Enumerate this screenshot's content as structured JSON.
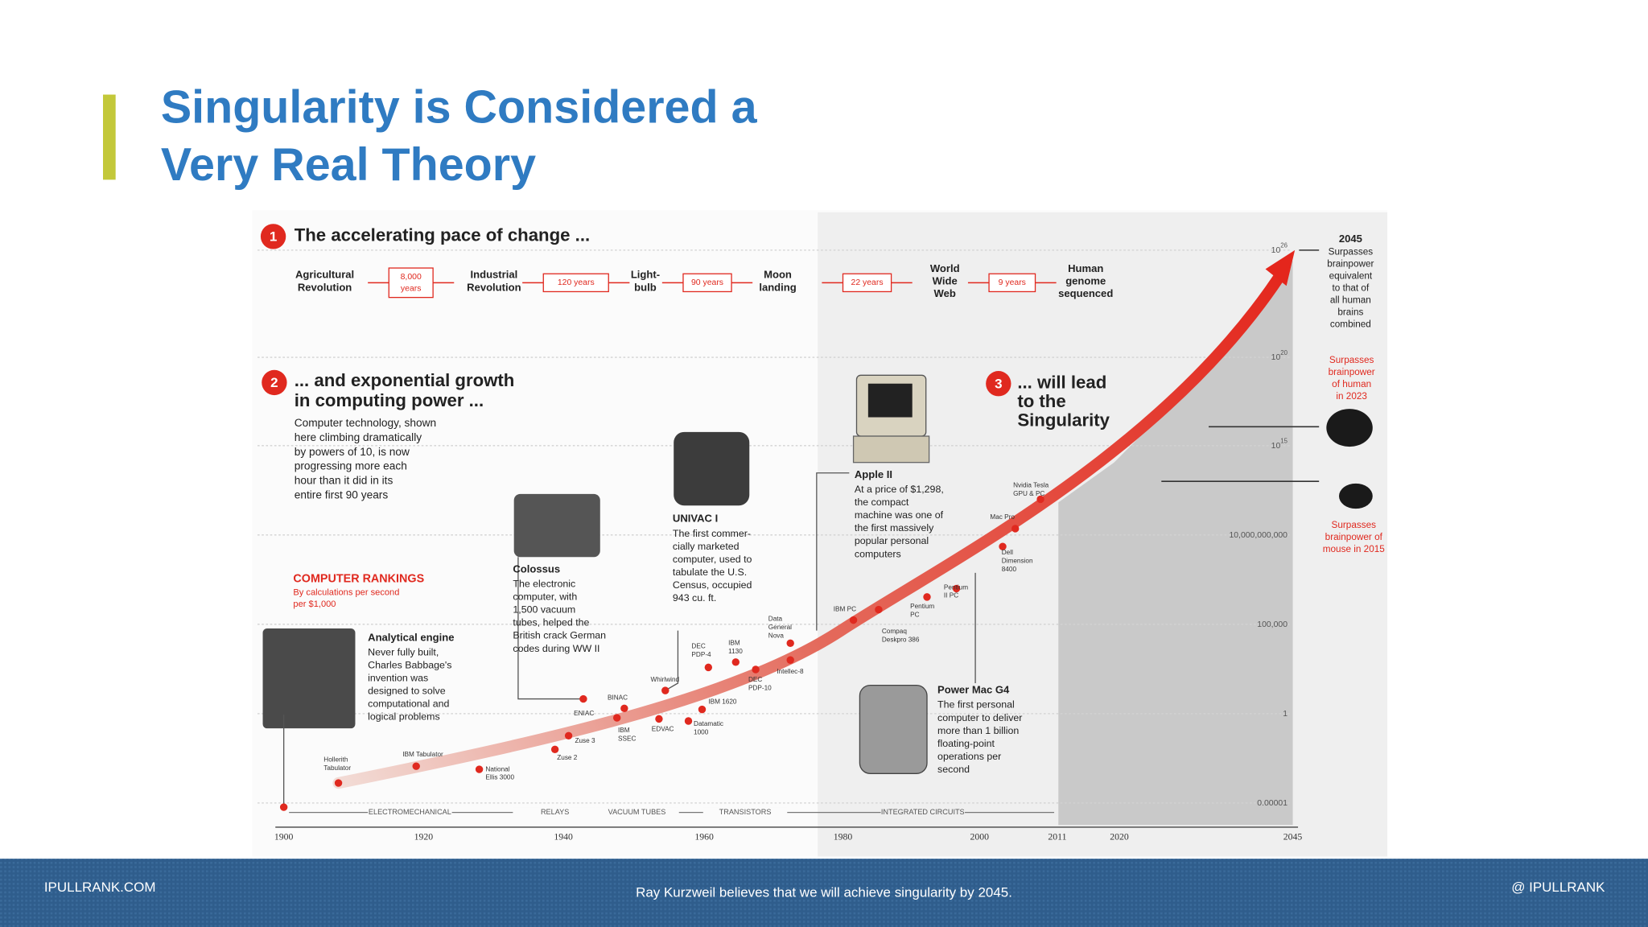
{
  "header": {
    "title": [
      "Singularity is Considered a",
      "Very Real Theory"
    ]
  },
  "infographic": {
    "section1": {
      "number": "1",
      "title": "The accelerating pace of change ..."
    },
    "milestones": [
      [
        "Agricultural",
        "Revolution"
      ],
      [
        "Industrial",
        "Revolution"
      ],
      [
        "Light-",
        "bulb"
      ],
      [
        "Moon",
        "landing"
      ],
      [
        "World",
        "Wide",
        "Web"
      ],
      [
        "Human",
        "genome",
        "sequenced"
      ]
    ],
    "intervals": [
      [
        "8,000",
        "years"
      ],
      [
        "120 years"
      ],
      [
        "90 years"
      ],
      [
        "22 years"
      ],
      [
        "9 years"
      ]
    ],
    "section2": {
      "number": "2",
      "title": [
        "... and exponential growth",
        "in computing power ..."
      ],
      "body": [
        "Computer technology, shown",
        "here climbing dramatically",
        "by powers of 10, is now",
        "progressing more each",
        "hour than it did in its",
        "entire first 90 years"
      ]
    },
    "section3": {
      "number": "3",
      "title": [
        "... will lead",
        "to the",
        "Singularity"
      ]
    },
    "rankings": {
      "title": "COMPUTER RANKINGS",
      "subtitle": [
        "By calculations per second",
        "per $1,000"
      ]
    },
    "callouts": [
      {
        "title": "Analytical engine",
        "body": [
          "Never fully built,",
          "Charles Babbage's",
          "invention was",
          "designed to solve",
          "computational and",
          "logical problems"
        ]
      },
      {
        "title": "Colossus",
        "body": [
          "The electronic",
          "computer, with",
          "1,500 vacuum",
          "tubes, helped the",
          "British crack German",
          "codes during WW II"
        ]
      },
      {
        "title": "UNIVAC I",
        "body": [
          "The first commer-",
          "cially marketed",
          "computer, used to",
          "tabulate the U.S.",
          "Census, occupied",
          "943 cu. ft."
        ]
      },
      {
        "title": "Apple II",
        "body": [
          "At a price of $1,298,",
          "the compact",
          "machine was one of",
          "the first massively",
          "popular personal",
          "computers"
        ]
      },
      {
        "title": "Power Mac G4",
        "body": [
          "The first personal",
          "computer to deliver",
          "more than 1 billion",
          "floating-point",
          "operations per",
          "second"
        ]
      }
    ],
    "point_labels": [
      [
        "Hollerith",
        "Tabulator"
      ],
      [
        "IBM Tabulator"
      ],
      [
        "National",
        "Ellis 3000"
      ],
      [
        "Zuse 2"
      ],
      [
        "Zuse 3"
      ],
      [
        "ENIAC"
      ],
      [
        "BINAC"
      ],
      [
        "IBM",
        "SSEC"
      ],
      [
        "EDVAC"
      ],
      [
        "Whirlwind"
      ],
      [
        "Datamatic",
        "1000"
      ],
      [
        "IBM 1620"
      ],
      [
        "DEC",
        "PDP-4"
      ],
      [
        "IBM",
        "1130"
      ],
      [
        "DEC",
        "PDP-10"
      ],
      [
        "Data",
        "General",
        "Nova"
      ],
      [
        "Intellec-8"
      ],
      [
        "IBM PC"
      ],
      [
        "Compaq",
        "Deskpro 386"
      ],
      [
        "Pentium",
        "PC"
      ],
      [
        "Pentium",
        "II PC"
      ],
      [
        "Dell",
        "Dimension",
        "8400"
      ],
      [
        "Mac Pro"
      ],
      [
        "Nvidia Tesla",
        "GPU & PC"
      ]
    ],
    "y_labels": [
      {
        "text": "10",
        "sup": "26"
      },
      {
        "text": "10",
        "sup": "20"
      },
      {
        "text": "10",
        "sup": "15"
      },
      {
        "text": "10,000,000,000"
      },
      {
        "text": "100,000"
      },
      {
        "text": "1"
      },
      {
        "text": "0.00001"
      }
    ],
    "x_labels": [
      "1900",
      "1920",
      "1940",
      "1960",
      "1980",
      "2000",
      "2011",
      "2020",
      "2045"
    ],
    "eras": [
      "ELECTROMECHANICAL",
      "RELAYS",
      "VACUUM TUBES",
      "TRANSISTORS",
      "INTEGRATED CIRCUITS"
    ],
    "notes": {
      "top": [
        "2045",
        "Surpasses",
        "brainpower",
        "equivalent",
        "to that of",
        "all human",
        "brains",
        "combined"
      ],
      "human": [
        "Surpasses",
        "brainpower",
        "of human",
        "in 2023"
      ],
      "mouse": [
        "Surpasses",
        "brainpower of",
        "mouse in 2015"
      ]
    }
  },
  "footer": {
    "left": "IPULLRANK.COM",
    "center": "Ray Kurzweil believes that we will achieve singularity by 2045.",
    "right": "@ IPULLRANK"
  }
}
